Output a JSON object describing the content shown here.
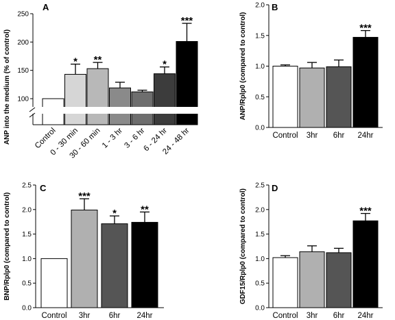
{
  "chart_data": [
    {
      "type": "bar",
      "panel": "A",
      "ylabel": "ANP into the medium (% of control)",
      "categories": [
        "Control",
        "0 - 30 min",
        "30 - 60 min",
        "1 - 3 hr",
        "3 - 6 hr",
        "6 - 24 hr",
        "24 - 48 hr"
      ],
      "values": [
        100,
        143,
        153,
        119,
        112,
        144,
        201
      ],
      "errors": [
        0,
        18,
        11,
        10,
        3,
        12,
        32
      ],
      "significance": [
        "",
        "*",
        "**",
        "",
        "",
        "*",
        "***"
      ],
      "colors": [
        "#ffffff",
        "#d6d6d6",
        "#b8b8b8",
        "#8a8a8a",
        "#6e6e6e",
        "#3c3c3c",
        "#000000"
      ],
      "ylim": [
        100,
        250
      ],
      "yticks": [
        "100",
        "150",
        "200",
        "250"
      ],
      "axis_break": true
    },
    {
      "type": "bar",
      "panel": "B",
      "ylabel": "ANP/Rplp0 (compared to control)",
      "categories": [
        "Control",
        "3hr",
        "6hr",
        "24hr"
      ],
      "values": [
        1.0,
        0.97,
        0.99,
        1.47
      ],
      "errors": [
        0.02,
        0.09,
        0.11,
        0.11
      ],
      "significance": [
        "",
        "",
        "",
        "***"
      ],
      "colors": [
        "#ffffff",
        "#b0b0b0",
        "#555555",
        "#000000"
      ],
      "ylim": [
        0,
        2.0
      ],
      "yticks": [
        "0.0",
        "0.5",
        "1.0",
        "1.5",
        "2.0"
      ]
    },
    {
      "type": "bar",
      "panel": "C",
      "ylabel": "BNP/Rplp0 (compared to control)",
      "categories": [
        "Control",
        "3hr",
        "6hr",
        "24hr"
      ],
      "values": [
        1.0,
        1.99,
        1.71,
        1.74
      ],
      "errors": [
        0,
        0.23,
        0.16,
        0.21
      ],
      "significance": [
        "",
        "***",
        "*",
        "**"
      ],
      "colors": [
        "#ffffff",
        "#b0b0b0",
        "#555555",
        "#000000"
      ],
      "ylim": [
        0,
        2.5
      ],
      "yticks": [
        "0.0",
        "0.5",
        "1.0",
        "1.5",
        "2.0",
        "2.5"
      ]
    },
    {
      "type": "bar",
      "panel": "D",
      "ylabel": "GDF15/Rplp0 (compared to control)",
      "categories": [
        "Control",
        "3hr",
        "6hr",
        "24hr"
      ],
      "values": [
        1.02,
        1.14,
        1.12,
        1.77
      ],
      "errors": [
        0.04,
        0.12,
        0.09,
        0.15
      ],
      "significance": [
        "",
        "",
        "",
        "***"
      ],
      "colors": [
        "#ffffff",
        "#b0b0b0",
        "#555555",
        "#000000"
      ],
      "ylim": [
        0,
        2.5
      ],
      "yticks": [
        "0.0",
        "0.5",
        "1.0",
        "1.5",
        "2.0",
        "2.5"
      ]
    }
  ]
}
